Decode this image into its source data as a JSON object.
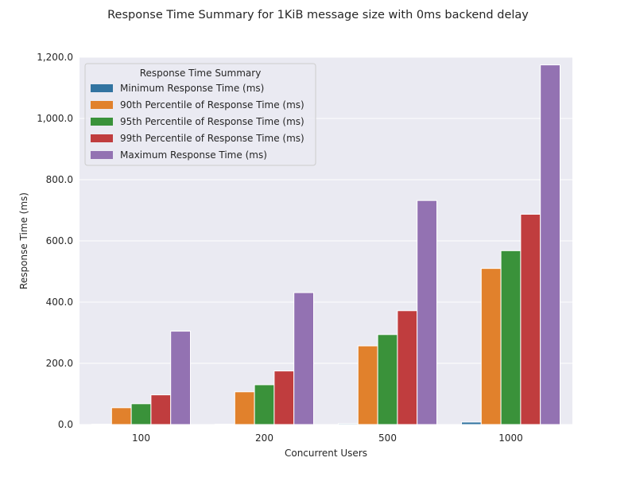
{
  "chart_data": {
    "type": "bar",
    "title": "Response Time Summary for 1KiB message size with 0ms backend delay",
    "xlabel": "Concurrent Users",
    "ylabel": "Response Time (ms)",
    "ylim": [
      0,
      1200
    ],
    "yticks": [
      "0.0",
      "200.0",
      "400.0",
      "600.0",
      "800.0",
      "1,000.0",
      "1,200.0"
    ],
    "ytick_values": [
      0,
      200,
      400,
      600,
      800,
      1000,
      1200
    ],
    "categories": [
      "100",
      "200",
      "500",
      "1000"
    ],
    "grid": true,
    "legend": {
      "title": "Response Time Summary",
      "placement": "top-left"
    },
    "series": [
      {
        "name": "Minimum Response Time (ms)",
        "color": "#3274a1",
        "values": [
          1,
          1,
          3,
          8
        ]
      },
      {
        "name": "90th Percentile of Response Time (ms)",
        "color": "#e1812c",
        "values": [
          55,
          107,
          257,
          510
        ]
      },
      {
        "name": "95th Percentile of Response Time (ms)",
        "color": "#3a923a",
        "values": [
          68,
          130,
          294,
          568
        ]
      },
      {
        "name": "99th Percentile of Response Time (ms)",
        "color": "#c03d3e",
        "values": [
          97,
          175,
          372,
          687
        ]
      },
      {
        "name": "Maximum Response Time (ms)",
        "color": "#9372b2",
        "values": [
          305,
          431,
          732,
          1175
        ]
      }
    ]
  }
}
